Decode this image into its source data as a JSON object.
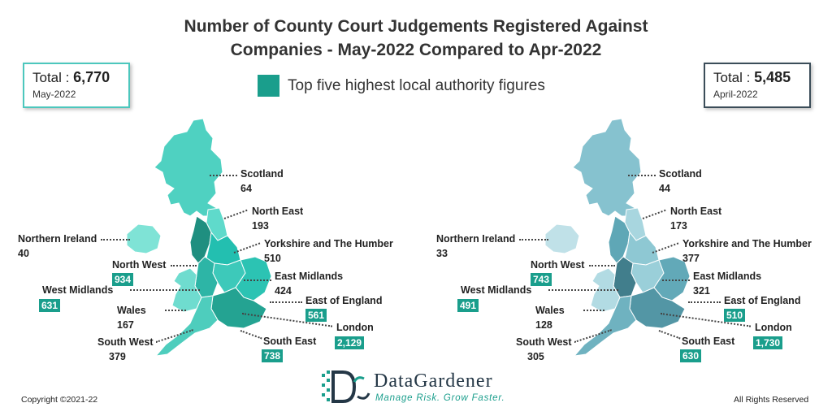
{
  "title_line1": "Number of County Court Judgements Registered Against",
  "title_line2": "Companies - May-2022 Compared to Apr-2022",
  "legend_label": "Top five highest local authority figures",
  "legend_color": "#1a9e8c",
  "left_total": {
    "label": "Total : ",
    "value": "6,770",
    "period": "May-2022"
  },
  "right_total": {
    "label": "Total : ",
    "value": "5,485",
    "period": "April-2022"
  },
  "regions": {
    "scotland": "Scotland",
    "north_east": "North East",
    "yorkshire": "Yorkshire and The Humber",
    "east_midlands": "East Midlands",
    "east_of_england": "East of England",
    "london": "London",
    "south_east": "South East",
    "south_west": "South West",
    "wales": "Wales",
    "west_midlands": "West Midlands",
    "north_west": "North West",
    "northern_ireland": "Northern Ireland"
  },
  "may": {
    "scotland": "64",
    "north_east": "193",
    "yorkshire": "510",
    "east_midlands": "424",
    "east_of_england": "561",
    "london": "2,129",
    "south_east": "738",
    "south_west": "379",
    "wales": "167",
    "west_midlands": "631",
    "north_west": "934",
    "northern_ireland": "40"
  },
  "april": {
    "scotland": "44",
    "north_east": "173",
    "yorkshire": "377",
    "east_midlands": "321",
    "east_of_england": "510",
    "london": "1,730",
    "south_east": "630",
    "south_west": "305",
    "wales": "128",
    "west_midlands": "491",
    "north_west": "743",
    "northern_ireland": "33"
  },
  "logo": {
    "brand": "DataGardener",
    "tagline": "Manage Risk. Grow Faster."
  },
  "footer": {
    "copyright": "Copyright ©2021-22",
    "rights": "All Rights Reserved"
  }
}
